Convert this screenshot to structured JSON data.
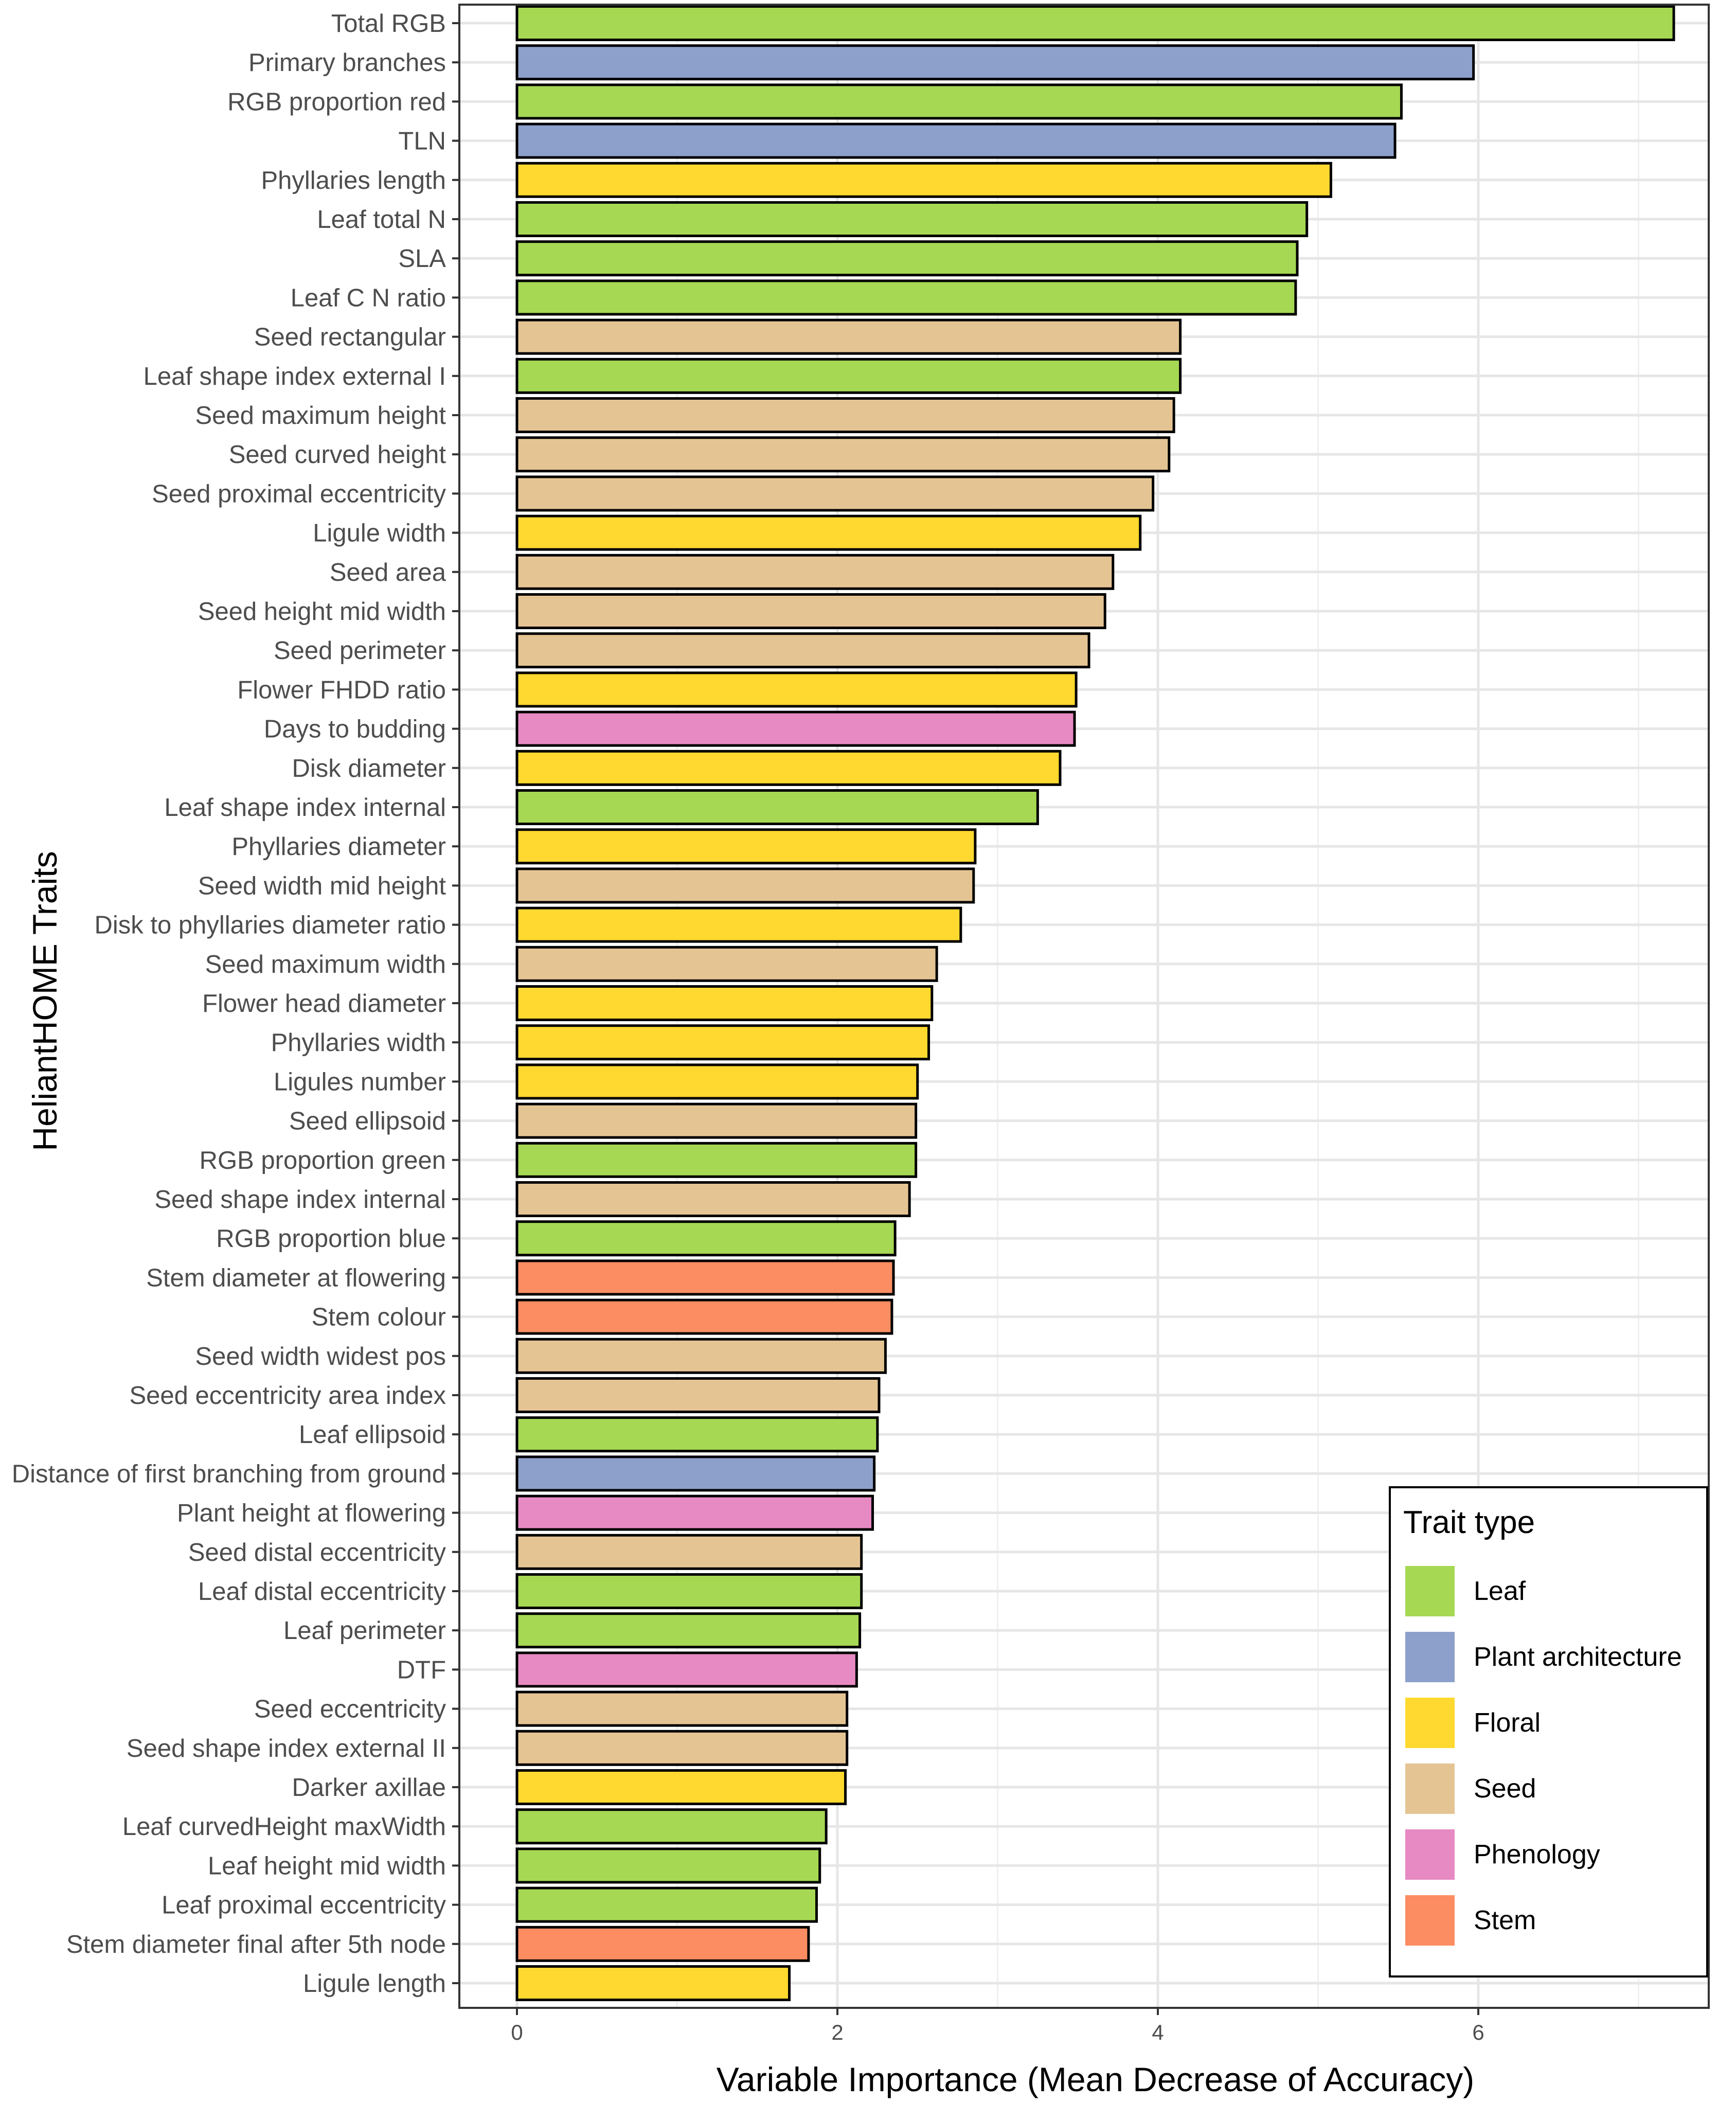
{
  "chart_data": {
    "type": "bar",
    "orientation": "horizontal",
    "xlabel": "Variable Importance (Mean Decrease of Accuracy)",
    "ylabel": "HeliantHOME Traits",
    "xlim": [
      0,
      7.6
    ],
    "xticks": [
      0,
      2,
      4,
      6
    ],
    "grid": true,
    "legend": {
      "title": "Trait type",
      "position": "bottom-right",
      "entries": [
        {
          "name": "Leaf",
          "color": "#A6D854"
        },
        {
          "name": "Plant architecture",
          "color": "#8DA0CB"
        },
        {
          "name": "Floral",
          "color": "#FFD92F"
        },
        {
          "name": "Seed",
          "color": "#E5C494"
        },
        {
          "name": "Phenology",
          "color": "#E78AC3"
        },
        {
          "name": "Stem",
          "color": "#FC8D62"
        }
      ]
    },
    "bars": [
      {
        "label": "Total RGB",
        "value": 7.22,
        "type": "Leaf"
      },
      {
        "label": "Primary branches",
        "value": 5.97,
        "type": "Plant architecture"
      },
      {
        "label": "RGB proportion red",
        "value": 5.52,
        "type": "Leaf"
      },
      {
        "label": "TLN",
        "value": 5.48,
        "type": "Plant architecture"
      },
      {
        "label": "Phyllaries length",
        "value": 5.08,
        "type": "Floral"
      },
      {
        "label": "Leaf total N",
        "value": 4.93,
        "type": "Leaf"
      },
      {
        "label": "SLA",
        "value": 4.87,
        "type": "Leaf"
      },
      {
        "label": "Leaf C N ratio",
        "value": 4.86,
        "type": "Leaf"
      },
      {
        "label": "Seed rectangular",
        "value": 4.14,
        "type": "Seed"
      },
      {
        "label": "Leaf shape index external I",
        "value": 4.14,
        "type": "Leaf"
      },
      {
        "label": "Seed maximum height",
        "value": 4.1,
        "type": "Seed"
      },
      {
        "label": "Seed curved height",
        "value": 4.07,
        "type": "Seed"
      },
      {
        "label": "Seed proximal eccentricity",
        "value": 3.97,
        "type": "Seed"
      },
      {
        "label": "Ligule width",
        "value": 3.89,
        "type": "Floral"
      },
      {
        "label": "Seed area",
        "value": 3.72,
        "type": "Seed"
      },
      {
        "label": "Seed height mid width",
        "value": 3.67,
        "type": "Seed"
      },
      {
        "label": "Seed perimeter",
        "value": 3.57,
        "type": "Seed"
      },
      {
        "label": "Flower FHDD ratio",
        "value": 3.49,
        "type": "Floral"
      },
      {
        "label": "Days to budding",
        "value": 3.48,
        "type": "Phenology"
      },
      {
        "label": "Disk diameter",
        "value": 3.39,
        "type": "Floral"
      },
      {
        "label": "Leaf shape index internal",
        "value": 3.25,
        "type": "Leaf"
      },
      {
        "label": "Phyllaries diameter",
        "value": 2.86,
        "type": "Floral"
      },
      {
        "label": "Seed width mid height",
        "value": 2.85,
        "type": "Seed"
      },
      {
        "label": "Disk to phyllaries diameter ratio",
        "value": 2.77,
        "type": "Floral"
      },
      {
        "label": "Seed maximum width",
        "value": 2.62,
        "type": "Seed"
      },
      {
        "label": "Flower head diameter",
        "value": 2.59,
        "type": "Floral"
      },
      {
        "label": "Phyllaries width",
        "value": 2.57,
        "type": "Floral"
      },
      {
        "label": "Ligules number",
        "value": 2.5,
        "type": "Floral"
      },
      {
        "label": "Seed ellipsoid",
        "value": 2.49,
        "type": "Seed"
      },
      {
        "label": "RGB proportion green",
        "value": 2.49,
        "type": "Leaf"
      },
      {
        "label": "Seed shape index internal",
        "value": 2.45,
        "type": "Seed"
      },
      {
        "label": "RGB proportion blue",
        "value": 2.36,
        "type": "Leaf"
      },
      {
        "label": "Stem diameter at flowering",
        "value": 2.35,
        "type": "Stem"
      },
      {
        "label": "Stem colour",
        "value": 2.34,
        "type": "Stem"
      },
      {
        "label": "Seed width widest pos",
        "value": 2.3,
        "type": "Seed"
      },
      {
        "label": "Seed eccentricity area index",
        "value": 2.26,
        "type": "Seed"
      },
      {
        "label": "Leaf ellipsoid",
        "value": 2.25,
        "type": "Leaf"
      },
      {
        "label": "Distance of first branching from ground",
        "value": 2.23,
        "type": "Plant architecture"
      },
      {
        "label": "Plant height at flowering",
        "value": 2.22,
        "type": "Phenology"
      },
      {
        "label": "Seed distal eccentricity",
        "value": 2.15,
        "type": "Seed"
      },
      {
        "label": "Leaf distal eccentricity",
        "value": 2.15,
        "type": "Leaf"
      },
      {
        "label": "Leaf perimeter",
        "value": 2.14,
        "type": "Leaf"
      },
      {
        "label": "DTF",
        "value": 2.12,
        "type": "Phenology"
      },
      {
        "label": "Seed eccentricity",
        "value": 2.06,
        "type": "Seed"
      },
      {
        "label": "Seed shape index external II",
        "value": 2.06,
        "type": "Seed"
      },
      {
        "label": "Darker axillae",
        "value": 2.05,
        "type": "Floral"
      },
      {
        "label": "Leaf curvedHeight maxWidth",
        "value": 1.93,
        "type": "Leaf"
      },
      {
        "label": "Leaf height mid width",
        "value": 1.89,
        "type": "Leaf"
      },
      {
        "label": "Leaf proximal eccentricity",
        "value": 1.87,
        "type": "Leaf"
      },
      {
        "label": "Stem diameter final after 5th node",
        "value": 1.82,
        "type": "Stem"
      },
      {
        "label": "Ligule length",
        "value": 1.7,
        "type": "Floral"
      }
    ]
  }
}
